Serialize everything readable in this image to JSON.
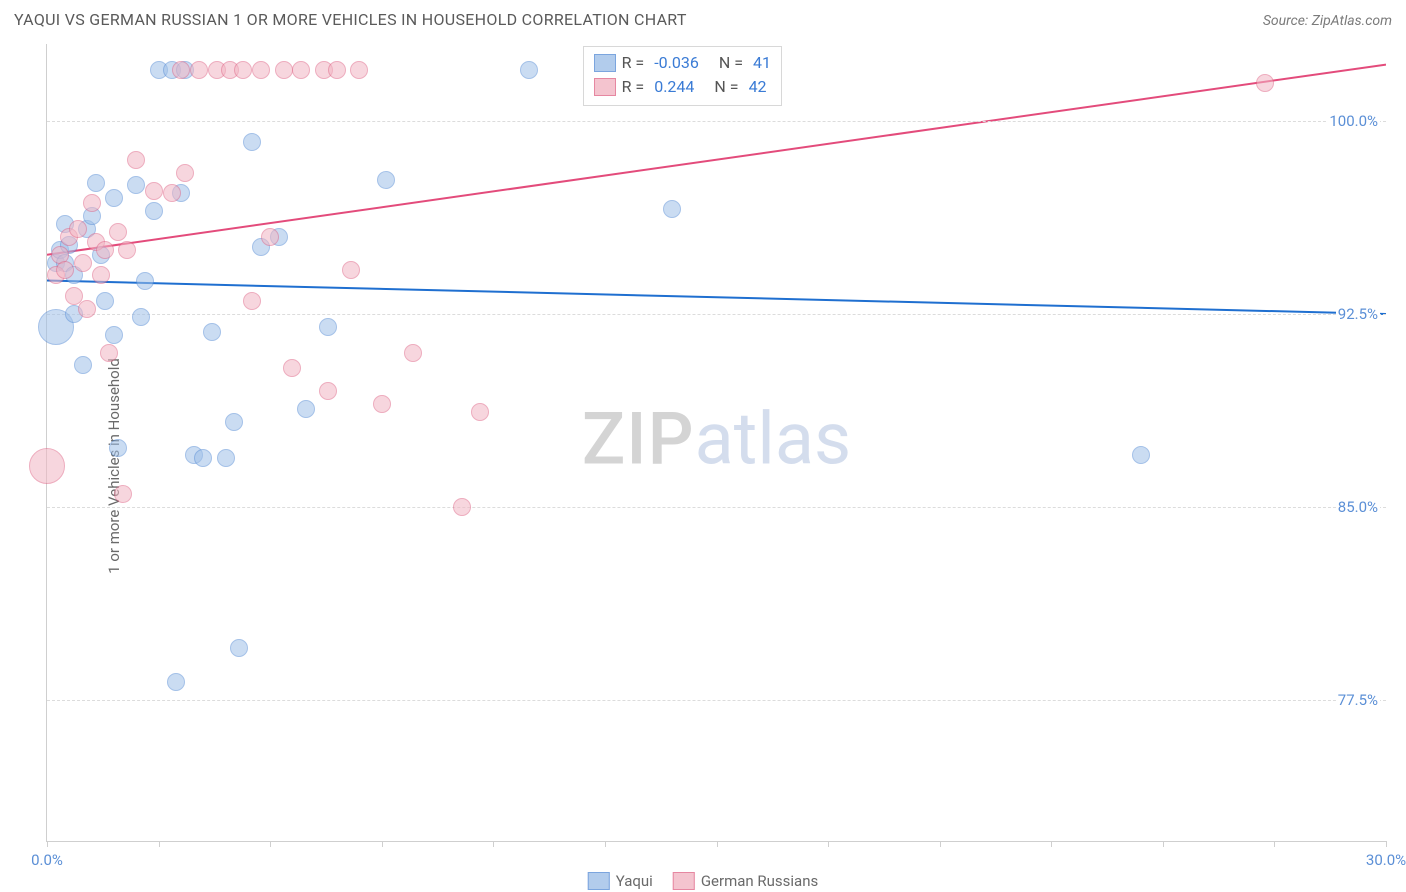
{
  "header": {
    "title": "YAQUI VS GERMAN RUSSIAN 1 OR MORE VEHICLES IN HOUSEHOLD CORRELATION CHART",
    "source": "Source: ZipAtlas.com"
  },
  "watermark": {
    "left": "ZIP",
    "right": "atlas"
  },
  "chart": {
    "type": "scatter",
    "background_color": "#ffffff",
    "grid_color": "#dcdcdc",
    "axis_color": "#cfcfcf",
    "label_color": "#6a6a6a",
    "tick_label_color": "#5b8fd6",
    "label_fontsize": 15,
    "xlim": [
      0.0,
      30.0
    ],
    "ylim": [
      72.0,
      103.0
    ],
    "xticks": [
      0.0,
      2.5,
      5.0,
      7.5,
      10.0,
      12.5,
      15.0,
      17.5,
      20.0,
      22.5,
      25.0,
      27.5,
      30.0
    ],
    "xticks_labeled": [
      {
        "value": 0.0,
        "label": "0.0%"
      },
      {
        "value": 30.0,
        "label": "30.0%"
      }
    ],
    "yticks": [
      {
        "value": 77.5,
        "label": "77.5%"
      },
      {
        "value": 85.0,
        "label": "85.0%"
      },
      {
        "value": 92.5,
        "label": "92.5%"
      },
      {
        "value": 100.0,
        "label": "100.0%"
      }
    ],
    "ylabel": "1 or more Vehicles in Household",
    "series": [
      {
        "name": "Yaqui",
        "fill_color": "#9fc0e8",
        "stroke_color": "#5b8fd6",
        "fill_opacity": 0.55,
        "marker_radius": 9,
        "trend": {
          "color": "#1f6fd0",
          "y_at_xmin": 93.8,
          "y_at_xmax": 92.5,
          "width": 2
        },
        "correlation": {
          "R": "-0.036",
          "N": "41"
        },
        "points": [
          {
            "x": 0.2,
            "y": 92.0,
            "r": 18
          },
          {
            "x": 0.2,
            "y": 94.5
          },
          {
            "x": 0.3,
            "y": 95.0
          },
          {
            "x": 0.4,
            "y": 94.5
          },
          {
            "x": 0.4,
            "y": 96.0
          },
          {
            "x": 0.5,
            "y": 95.2
          },
          {
            "x": 0.6,
            "y": 94.0
          },
          {
            "x": 0.6,
            "y": 92.5
          },
          {
            "x": 0.8,
            "y": 90.5
          },
          {
            "x": 0.9,
            "y": 95.8
          },
          {
            "x": 1.0,
            "y": 96.3
          },
          {
            "x": 1.1,
            "y": 97.6
          },
          {
            "x": 1.2,
            "y": 94.8
          },
          {
            "x": 1.3,
            "y": 93.0
          },
          {
            "x": 1.5,
            "y": 97.0
          },
          {
            "x": 1.5,
            "y": 91.7
          },
          {
            "x": 1.6,
            "y": 87.3
          },
          {
            "x": 2.0,
            "y": 97.5
          },
          {
            "x": 2.1,
            "y": 92.4
          },
          {
            "x": 2.2,
            "y": 93.8
          },
          {
            "x": 2.4,
            "y": 96.5
          },
          {
            "x": 2.5,
            "y": 102.0
          },
          {
            "x": 2.8,
            "y": 102.0
          },
          {
            "x": 2.9,
            "y": 78.2
          },
          {
            "x": 3.0,
            "y": 97.2
          },
          {
            "x": 3.1,
            "y": 102.0
          },
          {
            "x": 3.3,
            "y": 87.0
          },
          {
            "x": 3.5,
            "y": 86.9
          },
          {
            "x": 3.7,
            "y": 91.8
          },
          {
            "x": 4.0,
            "y": 86.9
          },
          {
            "x": 4.2,
            "y": 88.3
          },
          {
            "x": 4.3,
            "y": 79.5
          },
          {
            "x": 4.6,
            "y": 99.2
          },
          {
            "x": 4.8,
            "y": 95.1
          },
          {
            "x": 5.2,
            "y": 95.5
          },
          {
            "x": 5.8,
            "y": 88.8
          },
          {
            "x": 6.3,
            "y": 92.0
          },
          {
            "x": 7.6,
            "y": 97.7
          },
          {
            "x": 10.8,
            "y": 102.0
          },
          {
            "x": 14.0,
            "y": 96.6
          },
          {
            "x": 24.5,
            "y": 87.0
          }
        ]
      },
      {
        "name": "German Russians",
        "fill_color": "#f2b6c4",
        "stroke_color": "#e06a8a",
        "fill_opacity": 0.55,
        "marker_radius": 9,
        "trend": {
          "color": "#e34b7b",
          "y_at_xmin": 94.8,
          "y_at_xmax": 102.2,
          "width": 2
        },
        "correlation": {
          "R": "0.244",
          "N": "42"
        },
        "points": [
          {
            "x": 0.0,
            "y": 86.6,
            "r": 18
          },
          {
            "x": 0.2,
            "y": 94.0
          },
          {
            "x": 0.3,
            "y": 94.8
          },
          {
            "x": 0.4,
            "y": 94.2
          },
          {
            "x": 0.5,
            "y": 95.5
          },
          {
            "x": 0.6,
            "y": 93.2
          },
          {
            "x": 0.7,
            "y": 95.8
          },
          {
            "x": 0.8,
            "y": 94.5
          },
          {
            "x": 0.9,
            "y": 92.7
          },
          {
            "x": 1.0,
            "y": 96.8
          },
          {
            "x": 1.1,
            "y": 95.3
          },
          {
            "x": 1.2,
            "y": 94.0
          },
          {
            "x": 1.3,
            "y": 95.0
          },
          {
            "x": 1.4,
            "y": 91.0
          },
          {
            "x": 1.6,
            "y": 95.7
          },
          {
            "x": 1.7,
            "y": 85.5
          },
          {
            "x": 1.8,
            "y": 95.0
          },
          {
            "x": 2.0,
            "y": 98.5
          },
          {
            "x": 2.4,
            "y": 97.3
          },
          {
            "x": 2.8,
            "y": 97.2
          },
          {
            "x": 3.0,
            "y": 102.0
          },
          {
            "x": 3.1,
            "y": 98.0
          },
          {
            "x": 3.4,
            "y": 102.0
          },
          {
            "x": 3.8,
            "y": 102.0
          },
          {
            "x": 4.1,
            "y": 102.0
          },
          {
            "x": 4.4,
            "y": 102.0
          },
          {
            "x": 4.6,
            "y": 93.0
          },
          {
            "x": 4.8,
            "y": 102.0
          },
          {
            "x": 5.0,
            "y": 95.5
          },
          {
            "x": 5.3,
            "y": 102.0
          },
          {
            "x": 5.5,
            "y": 90.4
          },
          {
            "x": 5.7,
            "y": 102.0
          },
          {
            "x": 6.2,
            "y": 102.0
          },
          {
            "x": 6.3,
            "y": 89.5
          },
          {
            "x": 6.5,
            "y": 102.0
          },
          {
            "x": 6.8,
            "y": 94.2
          },
          {
            "x": 7.0,
            "y": 102.0
          },
          {
            "x": 7.5,
            "y": 89.0
          },
          {
            "x": 8.2,
            "y": 91.0
          },
          {
            "x": 9.3,
            "y": 85.0
          },
          {
            "x": 9.7,
            "y": 88.7
          },
          {
            "x": 27.3,
            "y": 101.5
          }
        ]
      }
    ],
    "legend_bottom": [
      {
        "label": "Yaqui",
        "fill": "#9fc0e8",
        "stroke": "#5b8fd6"
      },
      {
        "label": "German Russians",
        "fill": "#f2b6c4",
        "stroke": "#e06a8a"
      }
    ]
  }
}
